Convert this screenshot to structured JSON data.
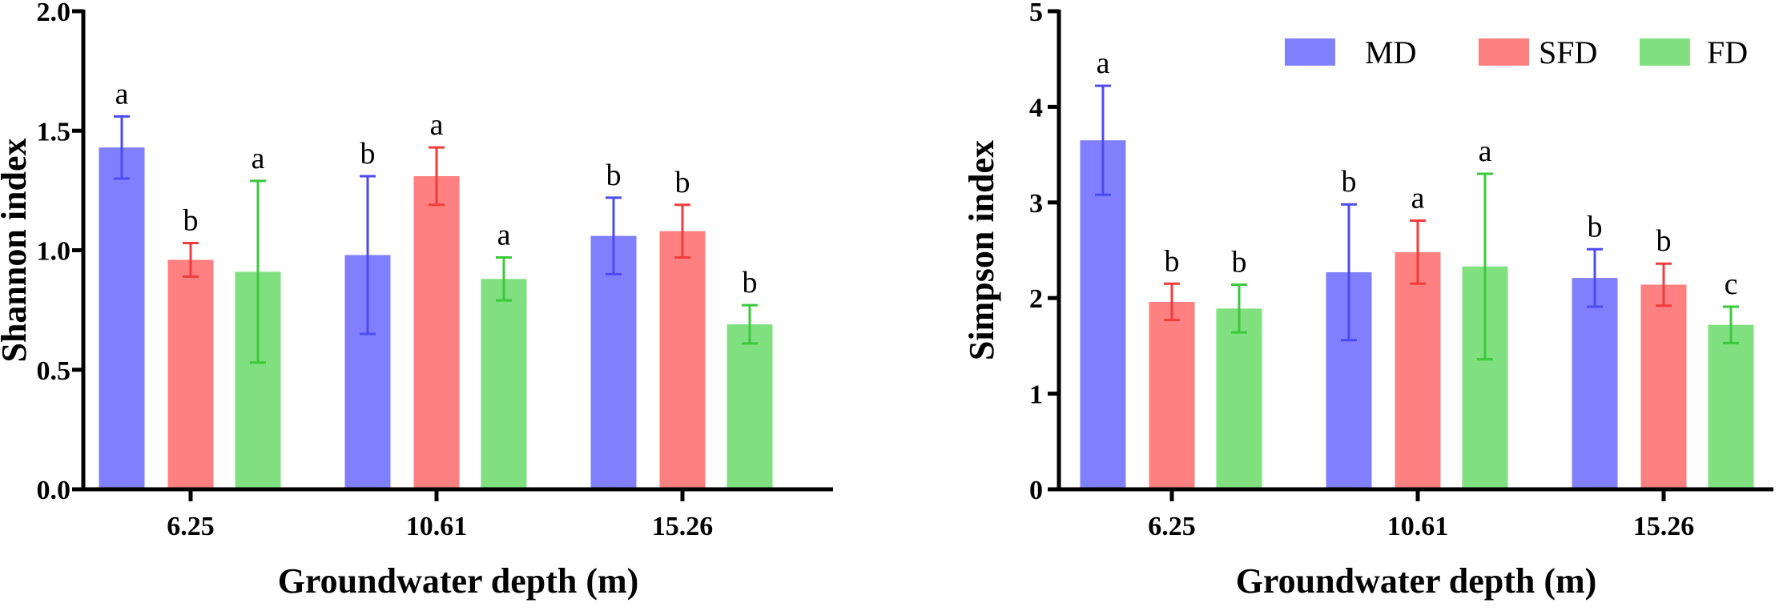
{
  "chart_data": [
    {
      "type": "bar",
      "xlabel": "Groundwater depth (m)",
      "ylabel": "Shannon index",
      "ylim": [
        0,
        2.0
      ],
      "yticks": [
        "0.0",
        "0.5",
        "1.0",
        "1.5",
        "2.0"
      ],
      "categories": [
        "6.25",
        "10.61",
        "15.26"
      ],
      "series": [
        {
          "name": "MD",
          "color": "#8080ff",
          "errcolor": "#4b4bf0",
          "values": [
            1.43,
            0.98,
            1.06
          ],
          "errors": [
            0.13,
            0.33,
            0.16
          ],
          "labels": [
            "a",
            "b",
            "b"
          ]
        },
        {
          "name": "SFD",
          "color": "#ff8080",
          "errcolor": "#f03c3c",
          "values": [
            0.96,
            1.31,
            1.08
          ],
          "errors": [
            0.07,
            0.12,
            0.11
          ],
          "labels": [
            "b",
            "a",
            "b"
          ]
        },
        {
          "name": "FD",
          "color": "#80e080",
          "errcolor": "#3cc83c",
          "values": [
            0.91,
            0.88,
            0.69
          ],
          "errors": [
            0.38,
            0.09,
            0.08
          ],
          "labels": [
            "a",
            "a",
            "b"
          ]
        }
      ],
      "legend": false
    },
    {
      "type": "bar",
      "xlabel": "Groundwater depth (m)",
      "ylabel": "Simpson index",
      "ylim": [
        0,
        5
      ],
      "yticks": [
        "0",
        "1",
        "2",
        "3",
        "4",
        "5"
      ],
      "categories": [
        "6.25",
        "10.61",
        "15.26"
      ],
      "series": [
        {
          "name": "MD",
          "color": "#8080ff",
          "errcolor": "#4b4bf0",
          "values": [
            3.65,
            2.27,
            2.21
          ],
          "errors": [
            0.57,
            0.71,
            0.3
          ],
          "labels": [
            "a",
            "b",
            "b"
          ]
        },
        {
          "name": "SFD",
          "color": "#ff8080",
          "errcolor": "#f03c3c",
          "values": [
            1.96,
            2.48,
            2.14
          ],
          "errors": [
            0.19,
            0.33,
            0.22
          ],
          "labels": [
            "b",
            "a",
            "b"
          ]
        },
        {
          "name": "FD",
          "color": "#80e080",
          "errcolor": "#3cc83c",
          "values": [
            1.89,
            2.33,
            1.72
          ],
          "errors": [
            0.25,
            0.97,
            0.19
          ],
          "labels": [
            "b",
            "a",
            "c"
          ]
        }
      ],
      "legend": true,
      "legend_position": "top-right"
    }
  ]
}
